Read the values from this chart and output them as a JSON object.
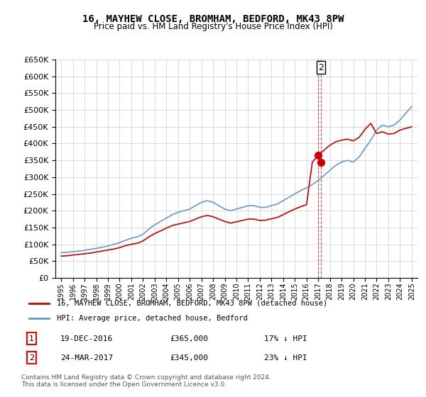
{
  "title": "16, MAYHEW CLOSE, BROMHAM, BEDFORD, MK43 8PW",
  "subtitle": "Price paid vs. HM Land Registry's House Price Index (HPI)",
  "legend_line1": "16, MAYHEW CLOSE, BROMHAM, BEDFORD, MK43 8PW (detached house)",
  "legend_line2": "HPI: Average price, detached house, Bedford",
  "transaction1_label": "1",
  "transaction1_date": "19-DEC-2016",
  "transaction1_price": "£365,000",
  "transaction1_hpi": "17% ↓ HPI",
  "transaction1_year": 2016.96,
  "transaction1_value": 365000,
  "transaction2_label": "2",
  "transaction2_date": "24-MAR-2017",
  "transaction2_price": "£345,000",
  "transaction2_hpi": "23% ↓ HPI",
  "transaction2_year": 2017.23,
  "transaction2_value": 345000,
  "ylim": [
    0,
    650000
  ],
  "yticks": [
    0,
    50000,
    100000,
    150000,
    200000,
    250000,
    300000,
    350000,
    400000,
    450000,
    500000,
    550000,
    600000,
    650000
  ],
  "background_color": "#ffffff",
  "grid_color": "#cccccc",
  "red_color": "#cc0000",
  "blue_color": "#6699cc",
  "footer": "Contains HM Land Registry data © Crown copyright and database right 2024.\nThis data is licensed under the Open Government Licence v3.0.",
  "hpi_years": [
    1995,
    1995.5,
    1996,
    1996.5,
    1997,
    1997.5,
    1998,
    1998.5,
    1999,
    1999.5,
    2000,
    2000.5,
    2001,
    2001.5,
    2002,
    2002.5,
    2003,
    2003.5,
    2004,
    2004.5,
    2005,
    2005.5,
    2006,
    2006.5,
    2007,
    2007.5,
    2008,
    2008.5,
    2009,
    2009.5,
    2010,
    2010.5,
    2011,
    2011.5,
    2012,
    2012.5,
    2013,
    2013.5,
    2014,
    2014.5,
    2015,
    2015.5,
    2016,
    2016.5,
    2017,
    2017.5,
    2018,
    2018.5,
    2019,
    2019.5,
    2020,
    2020.5,
    2021,
    2021.5,
    2022,
    2022.5,
    2023,
    2023.5,
    2024,
    2024.5,
    2025
  ],
  "hpi_values": [
    75000,
    76000,
    78000,
    80000,
    82000,
    85000,
    88000,
    91000,
    95000,
    100000,
    105000,
    112000,
    118000,
    122000,
    130000,
    145000,
    158000,
    168000,
    178000,
    188000,
    195000,
    200000,
    205000,
    215000,
    225000,
    230000,
    225000,
    215000,
    205000,
    200000,
    205000,
    210000,
    215000,
    215000,
    210000,
    210000,
    215000,
    220000,
    230000,
    240000,
    250000,
    260000,
    268000,
    278000,
    290000,
    305000,
    320000,
    335000,
    345000,
    350000,
    345000,
    360000,
    385000,
    410000,
    440000,
    455000,
    450000,
    455000,
    470000,
    490000,
    510000
  ],
  "price_years": [
    1995,
    1995.5,
    1996,
    1996.5,
    1997,
    1997.5,
    1998,
    1998.5,
    1999,
    1999.5,
    2000,
    2000.5,
    2001,
    2001.5,
    2002,
    2002.5,
    2003,
    2003.5,
    2004,
    2004.5,
    2005,
    2005.5,
    2006,
    2006.5,
    2007,
    2007.5,
    2008,
    2008.5,
    2009,
    2009.5,
    2010,
    2010.5,
    2011,
    2011.5,
    2012,
    2012.5,
    2013,
    2013.5,
    2014,
    2014.5,
    2015,
    2015.5,
    2016,
    2016.5,
    2017,
    2017.5,
    2018,
    2018.5,
    2019,
    2019.5,
    2020,
    2020.5,
    2021,
    2021.5,
    2022,
    2022.5,
    2023,
    2023.5,
    2024,
    2024.5,
    2025
  ],
  "price_values": [
    65000,
    66000,
    68000,
    70000,
    72000,
    74000,
    77000,
    80000,
    83000,
    86000,
    90000,
    96000,
    100000,
    103000,
    110000,
    122000,
    132000,
    140000,
    148000,
    156000,
    160000,
    164000,
    168000,
    175000,
    182000,
    186000,
    182000,
    175000,
    168000,
    163000,
    167000,
    171000,
    175000,
    175000,
    171000,
    172000,
    176000,
    180000,
    188000,
    197000,
    205000,
    212000,
    218000,
    345000,
    365000,
    380000,
    395000,
    405000,
    410000,
    413000,
    408000,
    418000,
    442000,
    460000,
    430000,
    435000,
    428000,
    430000,
    440000,
    445000,
    450000
  ]
}
